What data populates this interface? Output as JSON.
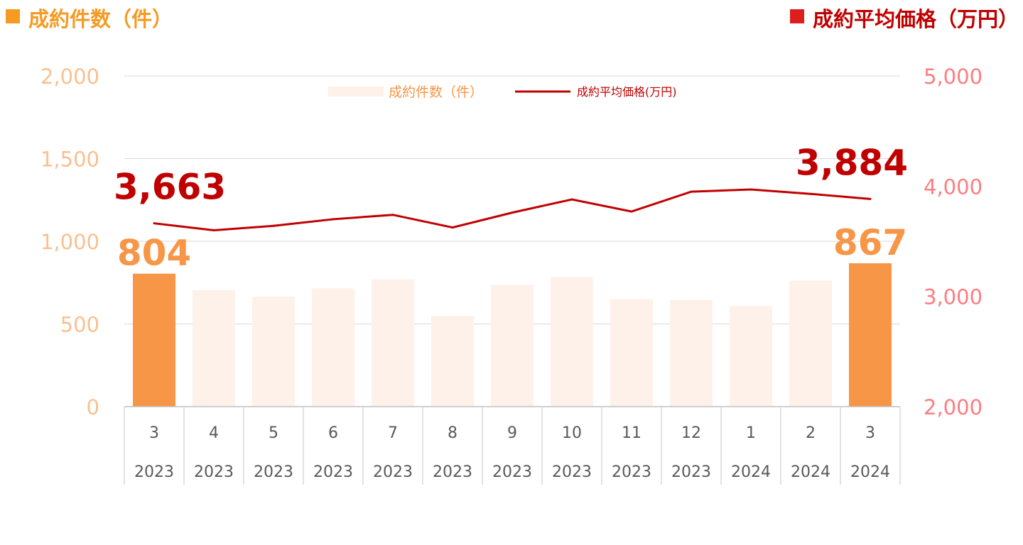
{
  "header": {
    "left_label": "成約件数（件）",
    "right_label": "成約平均価格（万円）"
  },
  "colors": {
    "bar_light": "#fdf1ea",
    "bar_highlight": "#f79646",
    "line": "#c00000",
    "left_axis": "#fac090",
    "right_axis": "#ff7c80",
    "header_left": "#f59a23",
    "header_right": "#c00000"
  },
  "chart_data": {
    "type": "bar+line",
    "categories": [
      {
        "month": "3",
        "year": "2023"
      },
      {
        "month": "4",
        "year": "2023"
      },
      {
        "month": "5",
        "year": "2023"
      },
      {
        "month": "6",
        "year": "2023"
      },
      {
        "month": "7",
        "year": "2023"
      },
      {
        "month": "8",
        "year": "2023"
      },
      {
        "month": "9",
        "year": "2023"
      },
      {
        "month": "10",
        "year": "2023"
      },
      {
        "month": "11",
        "year": "2023"
      },
      {
        "month": "12",
        "year": "2023"
      },
      {
        "month": "1",
        "year": "2024"
      },
      {
        "month": "2",
        "year": "2024"
      },
      {
        "month": "3",
        "year": "2024"
      }
    ],
    "series": [
      {
        "name": "成約件数（件）",
        "type": "bar",
        "axis": "left",
        "values": [
          804,
          705,
          665,
          715,
          770,
          548,
          737,
          785,
          650,
          645,
          608,
          762,
          867
        ],
        "highlight": [
          0,
          12
        ],
        "data_labels": {
          "0": "804",
          "12": "867"
        }
      },
      {
        "name": "成約平均価格(万円)",
        "type": "line",
        "axis": "right",
        "values": [
          3663,
          3600,
          3640,
          3700,
          3740,
          3625,
          3760,
          3880,
          3770,
          3950,
          3970,
          3930,
          3884
        ],
        "data_labels": {
          "0": "3,663",
          "12": "3,884"
        }
      }
    ],
    "left_axis": {
      "min": 0,
      "max": 2000,
      "ticks": [
        "0",
        "500",
        "1,000",
        "1,500",
        "2,000"
      ]
    },
    "right_axis": {
      "min": 2000,
      "max": 5000,
      "ticks": [
        "2,000",
        "3,000",
        "4,000",
        "5,000"
      ]
    },
    "grid": true,
    "legend": "top-center"
  }
}
